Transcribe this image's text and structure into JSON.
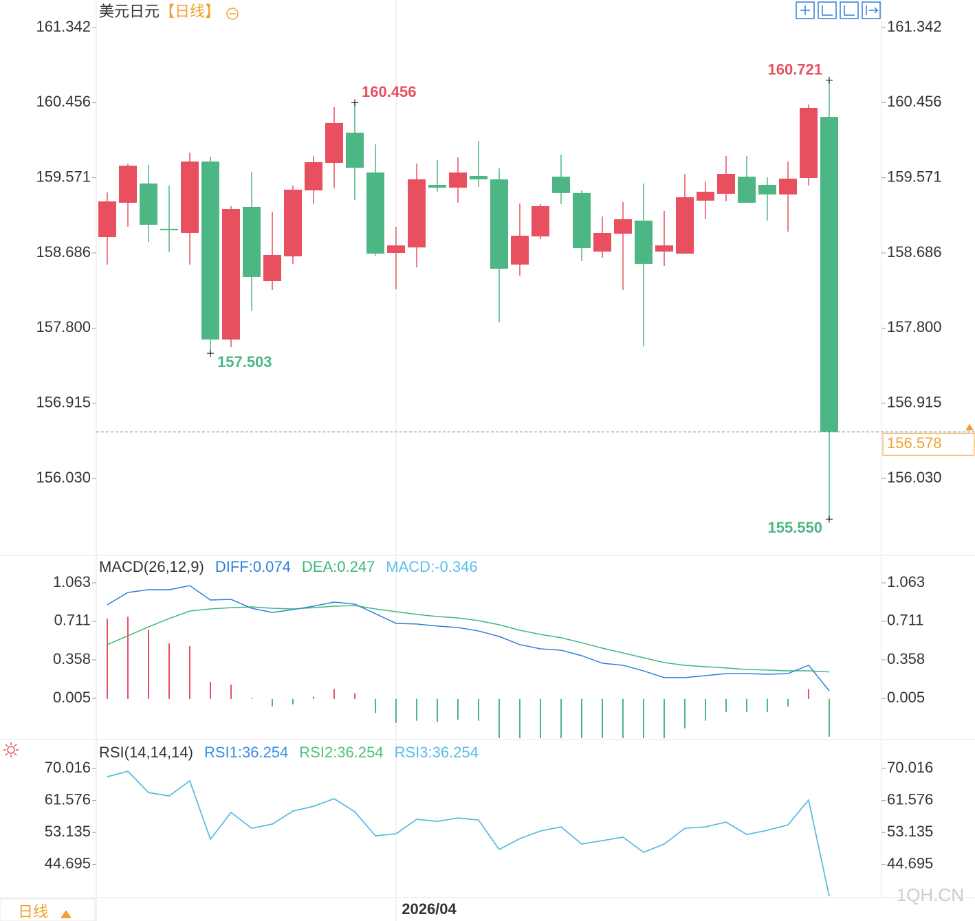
{
  "chart_data": [
    {
      "type": "candlestick",
      "title": "美元日元",
      "period": "【日线】",
      "categories": [
        null,
        null,
        null,
        null,
        null,
        null,
        null,
        null,
        null,
        null,
        null,
        null,
        null,
        null,
        "2026/04",
        null,
        null,
        null,
        null,
        null,
        null,
        null,
        null,
        null,
        null,
        null,
        null,
        null,
        null,
        null,
        null,
        null,
        null,
        null,
        null,
        null
      ],
      "open": [
        158.872,
        159.277,
        159.504,
        158.97,
        158.921,
        159.763,
        157.666,
        159.229,
        158.354,
        158.646,
        159.423,
        159.747,
        160.103,
        159.634,
        158.686,
        158.751,
        159.488,
        159.455,
        159.593,
        159.553,
        158.549,
        158.881,
        159.585,
        159.391,
        158.702,
        158.913,
        159.067,
        158.702,
        158.678,
        159.302,
        159.383,
        159.585,
        159.488,
        159.375,
        159.569,
        160.289
      ],
      "high": [
        159.399,
        159.739,
        159.723,
        159.48,
        159.868,
        159.82,
        159.237,
        159.642,
        159.172,
        159.48,
        159.828,
        160.403,
        160.456,
        159.965,
        158.994,
        159.739,
        159.779,
        159.812,
        160.006,
        159.682,
        159.269,
        159.261,
        159.844,
        159.423,
        159.115,
        159.285,
        159.504,
        159.18,
        159.617,
        159.528,
        159.828,
        159.828,
        159.577,
        159.763,
        160.435,
        160.721
      ],
      "low": [
        158.549,
        158.994,
        158.816,
        158.694,
        158.549,
        157.503,
        157.577,
        158.006,
        158.249,
        158.557,
        159.261,
        159.447,
        159.31,
        158.654,
        158.257,
        158.516,
        159.407,
        159.277,
        159.464,
        157.868,
        158.419,
        158.848,
        159.261,
        158.589,
        158.63,
        158.249,
        157.585,
        158.532,
        158.678,
        159.083,
        159.294,
        159.277,
        159.067,
        158.937,
        159.48,
        155.55
      ],
      "close": [
        159.293,
        159.714,
        159.018,
        158.953,
        159.763,
        157.666,
        159.204,
        158.403,
        158.662,
        159.431,
        159.755,
        160.217,
        159.69,
        158.678,
        158.775,
        159.553,
        159.455,
        159.634,
        159.553,
        158.5,
        158.889,
        159.237,
        159.391,
        158.743,
        158.921,
        159.083,
        158.557,
        158.775,
        159.342,
        159.407,
        159.617,
        159.277,
        159.375,
        159.561,
        160.395,
        156.578
      ],
      "up_color": "#e8505f",
      "down_color": "#4cb784",
      "last_price_color": "#f0a030",
      "ylim": [
        155.123,
        161.666
      ],
      "yticks": [
        161.342,
        160.456,
        159.571,
        158.686,
        {
          "value": 157.8,
          "label": "157.800"
        },
        156.915,
        {
          "value": 156.03,
          "label": "156.030"
        }
      ],
      "extremes": [
        {
          "candle": 12,
          "kind": "high",
          "value": 160.456
        },
        {
          "candle": 35,
          "kind": "high",
          "value": 160.721
        },
        {
          "candle": 5,
          "kind": "low",
          "value": 157.503
        },
        {
          "candle": 35,
          "kind": "low",
          "value": 155.55,
          "label": "155.550"
        }
      ]
    },
    {
      "type": "macd",
      "title": "MACD(26,12,9)",
      "series": [
        {
          "name": "DIFF:0.074",
          "color": "#2f7fd6",
          "values": [
            0.862,
            0.975,
            1.0,
            1.0,
            1.038,
            0.906,
            0.912,
            0.83,
            0.792,
            0.818,
            0.849,
            0.887,
            0.868,
            0.78,
            0.692,
            0.686,
            0.667,
            0.654,
            0.622,
            0.572,
            0.497,
            0.459,
            0.446,
            0.396,
            0.327,
            0.308,
            0.257,
            0.195,
            0.195,
            0.213,
            0.232,
            0.232,
            0.226,
            0.232,
            0.308,
            0.074
          ]
        },
        {
          "name": "DEA:0.247",
          "color": "#3db87a",
          "values": [
            0.497,
            0.578,
            0.66,
            0.736,
            0.805,
            0.824,
            0.836,
            0.843,
            0.83,
            0.824,
            0.836,
            0.849,
            0.855,
            0.824,
            0.799,
            0.774,
            0.755,
            0.742,
            0.717,
            0.679,
            0.629,
            0.591,
            0.56,
            0.515,
            0.465,
            0.421,
            0.377,
            0.333,
            0.308,
            0.295,
            0.283,
            0.27,
            0.264,
            0.257,
            0.257,
            0.247
          ]
        },
        {
          "name": "MACD:-0.346",
          "color": "#5bc0eb",
          "up_color": "#e8505f",
          "down_color": "#4cb784",
          "values": [
            0.734,
            0.753,
            0.634,
            0.508,
            0.483,
            0.156,
            0.131,
            0.006,
            -0.07,
            -0.05,
            0.02,
            0.09,
            0.05,
            -0.13,
            -0.22,
            -0.2,
            -0.21,
            -0.19,
            -0.2,
            -0.36,
            -0.36,
            -0.36,
            -0.36,
            -0.36,
            -0.36,
            -0.36,
            -0.36,
            -0.36,
            -0.27,
            -0.2,
            -0.12,
            -0.12,
            -0.12,
            -0.07,
            0.09,
            -0.346
          ]
        }
      ],
      "ylim": [
        -0.366,
        1.315
      ],
      "yticks": [
        1.063,
        0.711,
        0.358,
        0.005
      ]
    },
    {
      "type": "line",
      "title": "RSI(14,14,14)",
      "series": [
        {
          "name": "RSI1:36.254",
          "color": "#3a8ee6",
          "values": [
            67.84,
            69.29,
            63.66,
            62.76,
            66.75,
            51.32,
            58.4,
            54.23,
            55.32,
            58.77,
            60.03,
            62.03,
            58.58,
            52.23,
            52.77,
            56.59,
            56.04,
            56.95,
            56.4,
            48.6,
            51.5,
            53.5,
            54.59,
            50.05,
            50.96,
            51.87,
            47.87,
            50.05,
            54.23,
            54.59,
            55.86,
            52.59,
            53.68,
            55.13,
            61.67,
            36.254
          ]
        },
        {
          "name": "RSI2:36.254",
          "color": "#52c07a",
          "values": [
            67.84,
            69.29,
            63.66,
            62.76,
            66.75,
            51.32,
            58.4,
            54.23,
            55.32,
            58.77,
            60.03,
            62.03,
            58.58,
            52.23,
            52.77,
            56.59,
            56.04,
            56.95,
            56.4,
            48.6,
            51.5,
            53.5,
            54.59,
            50.05,
            50.96,
            51.87,
            47.87,
            50.05,
            54.23,
            54.59,
            55.86,
            52.59,
            53.68,
            55.13,
            61.67,
            36.254
          ]
        },
        {
          "name": "RSI3:36.254",
          "color": "#5bbce8",
          "values": [
            67.84,
            69.29,
            63.66,
            62.76,
            66.75,
            51.32,
            58.4,
            54.23,
            55.32,
            58.77,
            60.03,
            62.03,
            58.58,
            52.23,
            52.77,
            56.59,
            56.04,
            56.95,
            56.4,
            48.6,
            51.5,
            53.5,
            54.59,
            50.05,
            50.96,
            51.87,
            47.87,
            50.05,
            54.23,
            54.59,
            55.86,
            52.59,
            53.68,
            55.13,
            61.67,
            36.254
          ]
        }
      ],
      "ylim": [
        35.9,
        77.3
      ],
      "yticks": [
        70.016,
        61.576,
        53.135,
        44.695
      ]
    }
  ],
  "footer": {
    "period_button": "日线",
    "watermark": "1QH.CN"
  }
}
